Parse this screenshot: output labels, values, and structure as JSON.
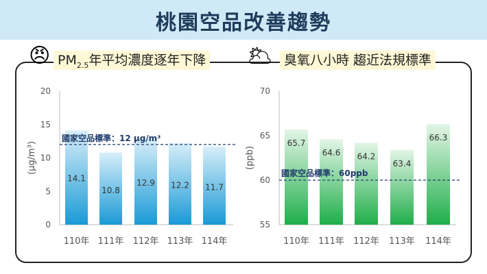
{
  "title": "桃園空品改善趨勢",
  "left_heading": {
    "prefix": "PM",
    "sub": "2.5",
    "suffix": "年平均濃度逐年下降"
  },
  "right_heading": "臭氧八小時 趨近法規標準",
  "icons": {
    "left": "angry-sun-icon",
    "right": "sun-cloud-icon"
  },
  "colors": {
    "pm_bar": "#1a9ad6",
    "o3_bar": "#1fae4a",
    "band": "#cfe9f7"
  },
  "chart_data": [
    {
      "type": "bar",
      "title": "PM2.5年平均濃度逐年下降",
      "categories": [
        "110年",
        "111年",
        "112年",
        "113年",
        "114年"
      ],
      "values": [
        14.1,
        10.8,
        12.9,
        12.2,
        11.7
      ],
      "labels": [
        "14.1",
        "10.8",
        "12.9",
        "12.2",
        "11.7"
      ],
      "ylabel": "(μg/m³)",
      "ylim": [
        0,
        20
      ],
      "yticks": [
        "0",
        "5",
        "10",
        "15",
        "20"
      ],
      "threshold": 12,
      "threshold_label": "國家空品標準：12 μg/m³"
    },
    {
      "type": "bar",
      "title": "臭氧八小時 趨近法規標準",
      "categories": [
        "110年",
        "111年",
        "112年",
        "113年",
        "114年"
      ],
      "values": [
        65.7,
        64.6,
        64.2,
        63.4,
        66.3
      ],
      "labels": [
        "65.7",
        "64.6",
        "64.2",
        "63.4",
        "66.3"
      ],
      "ylabel": "(ppb)",
      "ylim": [
        55,
        70
      ],
      "yticks": [
        "55",
        "60",
        "65",
        "70"
      ],
      "threshold": 60,
      "threshold_label": "國家空品標準：60ppb"
    }
  ]
}
